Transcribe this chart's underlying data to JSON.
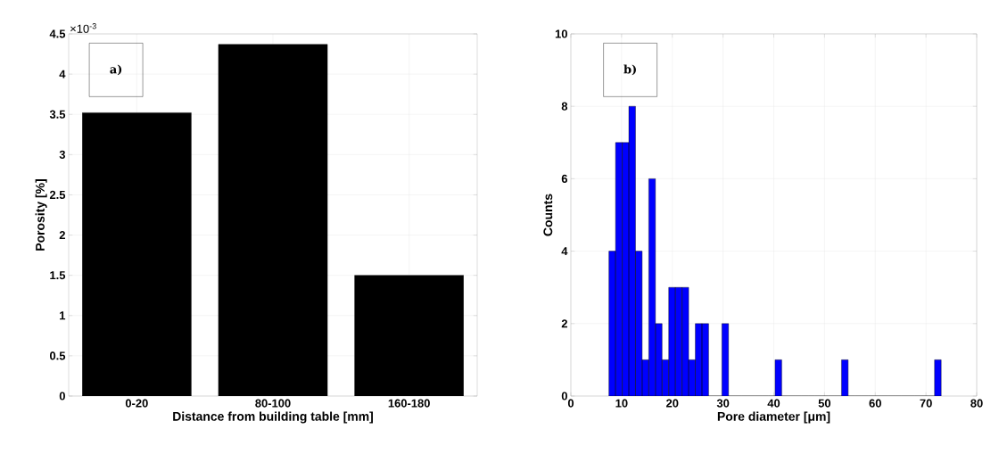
{
  "chart_data": [
    {
      "type": "bar",
      "xlabel": "Distance from building table [mm]",
      "ylabel": "Porosity [%]",
      "categories": [
        "0-20",
        "80-100",
        "160-180"
      ],
      "values": [
        3.52,
        4.37,
        1.5
      ],
      "color": "#000000",
      "ylim": [
        0,
        4.5
      ],
      "yticks": [
        0,
        0.5,
        1,
        1.5,
        2,
        2.5,
        3,
        3.5,
        4,
        4.5
      ],
      "grid": true,
      "annotations": [
        "×10$^{-3}$",
        "a)"
      ]
    },
    {
      "type": "histogram",
      "xlabel": "Pore diameter [μm]",
      "ylabel": "Counts",
      "color": "#0000ff",
      "bins": [
        7.5,
        8.81,
        10.12,
        11.43,
        12.74,
        14.05,
        15.36,
        16.67,
        17.98,
        19.29,
        20.6,
        21.91,
        23.22,
        24.53,
        25.84,
        27.15,
        28.46,
        29.77,
        31.08,
        32.39,
        33.7,
        35.01,
        36.32,
        37.63,
        38.94,
        40.25,
        41.56,
        42.87,
        44.18,
        45.49,
        46.8,
        48.11,
        49.42,
        50.73,
        52.04,
        53.35,
        54.66,
        55.97,
        57.28,
        58.59,
        59.9,
        61.21,
        62.52,
        63.83,
        65.14,
        66.45,
        67.76,
        69.07,
        70.38,
        71.69,
        73.0
      ],
      "values": [
        4,
        7,
        7,
        8,
        4,
        1,
        6,
        2,
        1,
        3,
        3,
        3,
        1,
        2,
        2,
        0,
        0,
        2,
        0,
        0,
        0,
        0,
        0,
        0,
        0,
        1,
        0,
        0,
        0,
        0,
        0,
        0,
        0,
        0,
        0,
        1,
        0,
        0,
        0,
        0,
        0,
        0,
        0,
        0,
        0,
        0,
        0,
        0,
        0,
        1
      ],
      "xlim": [
        0,
        80
      ],
      "xticks": [
        0,
        10,
        20,
        30,
        40,
        50,
        60,
        70,
        80
      ],
      "ylim": [
        0,
        10
      ],
      "yticks": [
        0,
        2,
        4,
        6,
        8,
        10
      ],
      "grid": true,
      "annotations": [
        "b)"
      ]
    }
  ]
}
